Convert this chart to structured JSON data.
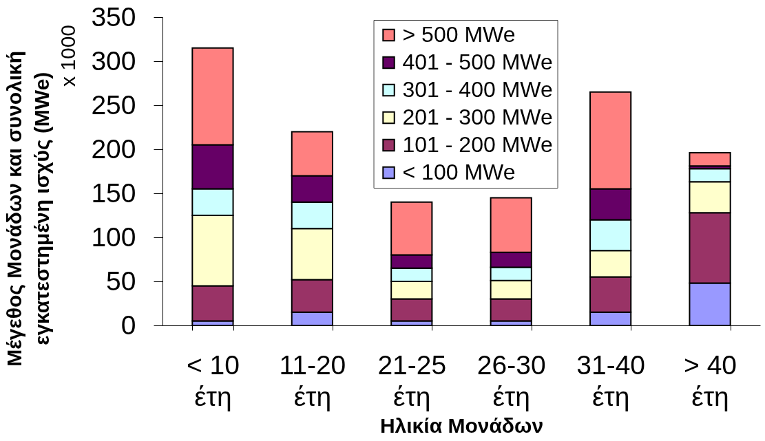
{
  "chart_data": {
    "type": "bar",
    "stacked": true,
    "xlabel": "Ηλικία Μονάδων",
    "ylabel": "Μέγεθος Μονάδων και συνολική εγκατεστημένη ισχύς (MWe)",
    "annotations": [
      "x 1000"
    ],
    "categories": [
      "< 10 έτη",
      "11-20 έτη",
      "21-25 έτη",
      "26-30 έτη",
      "31-40 έτη",
      "> 40 έτη"
    ],
    "series": [
      {
        "name": "< 100 MWe",
        "color": "#9999ff",
        "values": [
          5,
          15,
          5,
          5,
          15,
          48
        ]
      },
      {
        "name": "101 - 200 MWe",
        "color": "#993366",
        "values": [
          40,
          37,
          25,
          25,
          40,
          80
        ]
      },
      {
        "name": "201 - 300 MWe",
        "color": "#ffffcc",
        "values": [
          80,
          58,
          20,
          21,
          30,
          35
        ]
      },
      {
        "name": "301 - 400 MWe",
        "color": "#ccffff",
        "values": [
          30,
          30,
          15,
          15,
          35,
          15
        ]
      },
      {
        "name": "401 - 500 MWe",
        "color": "#660066",
        "values": [
          50,
          30,
          15,
          17,
          35,
          3
        ]
      },
      {
        "name": "> 500 MWe",
        "color": "#ff8080",
        "values": [
          110,
          50,
          60,
          62,
          110,
          15
        ]
      }
    ],
    "ylim": [
      0,
      350
    ],
    "yticks": [
      0,
      50,
      100,
      150,
      200,
      250,
      300,
      350
    ],
    "grid": false,
    "legend": "top"
  }
}
